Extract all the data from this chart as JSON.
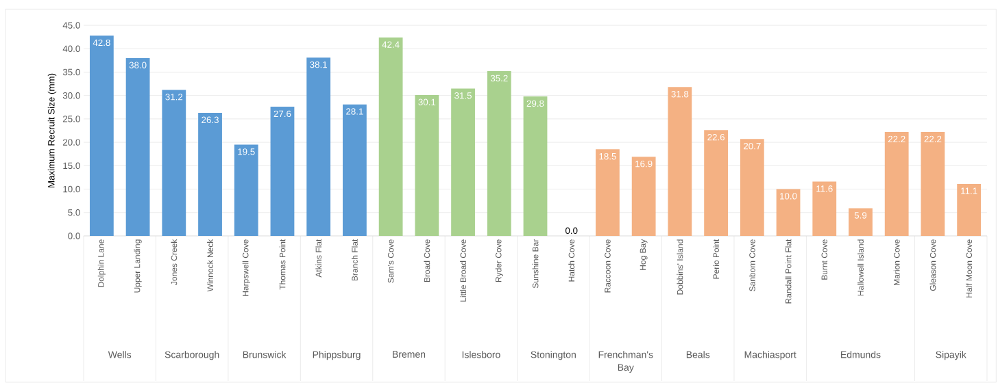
{
  "chart_data": {
    "type": "bar",
    "ylabel": "Maximum Recruit Size (mm)",
    "categories": [
      "Dolphin Lane",
      "Upper Landing",
      "Jones Creek",
      "Winnock Neck",
      "Harpswell Cove",
      "Thomas Point",
      "Atkins Flat",
      "Branch Flat",
      "Sam's Cove",
      "Broad Cove",
      "Little Broad Cove",
      "Ryder Cove",
      "Sunshine Bar",
      "Hatch Cove",
      "Raccoon Cove",
      "Hog Bay",
      "Dobbins' Island",
      "Perio Point",
      "Sanborn Cove",
      "Randall Point Flat",
      "Burnt Cove",
      "Hallowell Island",
      "Marion Cove",
      "Gleason Cove",
      "Half Moon Cove"
    ],
    "values": [
      42.8,
      38.0,
      31.2,
      26.3,
      19.5,
      27.6,
      38.1,
      28.1,
      42.4,
      30.1,
      31.5,
      35.2,
      29.8,
      0.0,
      18.5,
      16.9,
      31.8,
      22.6,
      20.7,
      10.0,
      11.6,
      5.9,
      22.2,
      22.2,
      11.1
    ],
    "value_labels": [
      "42.8",
      "38.0",
      "31.2",
      "26.3",
      "19.5",
      "27.6",
      "38.1",
      "28.1",
      "42.4",
      "30.1",
      "31.5",
      "35.2",
      "29.8",
      "0.0",
      "18.5",
      "16.9",
      "31.8",
      "22.6",
      "20.7",
      "10.0",
      "11.6",
      "5.9",
      "22.2",
      "22.2",
      "11.1"
    ],
    "colors": [
      "#5b9bd5",
      "#5b9bd5",
      "#5b9bd5",
      "#5b9bd5",
      "#5b9bd5",
      "#5b9bd5",
      "#5b9bd5",
      "#5b9bd5",
      "#a9d18e",
      "#a9d18e",
      "#a9d18e",
      "#a9d18e",
      "#a9d18e",
      "#a9d18e",
      "#f4b183",
      "#f4b183",
      "#f4b183",
      "#f4b183",
      "#f4b183",
      "#f4b183",
      "#f4b183",
      "#f4b183",
      "#f4b183",
      "#f4b183",
      "#f4b183"
    ],
    "ylim": [
      0,
      45
    ],
    "yticks": [
      {
        "value": 0,
        "label": "0.0"
      },
      {
        "value": 5,
        "label": "5.0"
      },
      {
        "value": 10,
        "label": "10.0"
      },
      {
        "value": 15,
        "label": "15.0"
      },
      {
        "value": 20,
        "label": "20.0"
      },
      {
        "value": 25,
        "label": "25.0"
      },
      {
        "value": 30,
        "label": "30.0"
      },
      {
        "value": 35,
        "label": "35.0"
      },
      {
        "value": 40,
        "label": "40.0"
      },
      {
        "value": 45,
        "label": "45.0"
      }
    ],
    "grid": "y",
    "annotations": [
      "Wells",
      "Scarborough",
      "Brunswick",
      "Phippsburg",
      "Bremen",
      "Islesboro",
      "Stonington",
      "Frenchman's Bay",
      "Beals",
      "Machiasport",
      "Edmunds",
      "Sipayik"
    ]
  }
}
